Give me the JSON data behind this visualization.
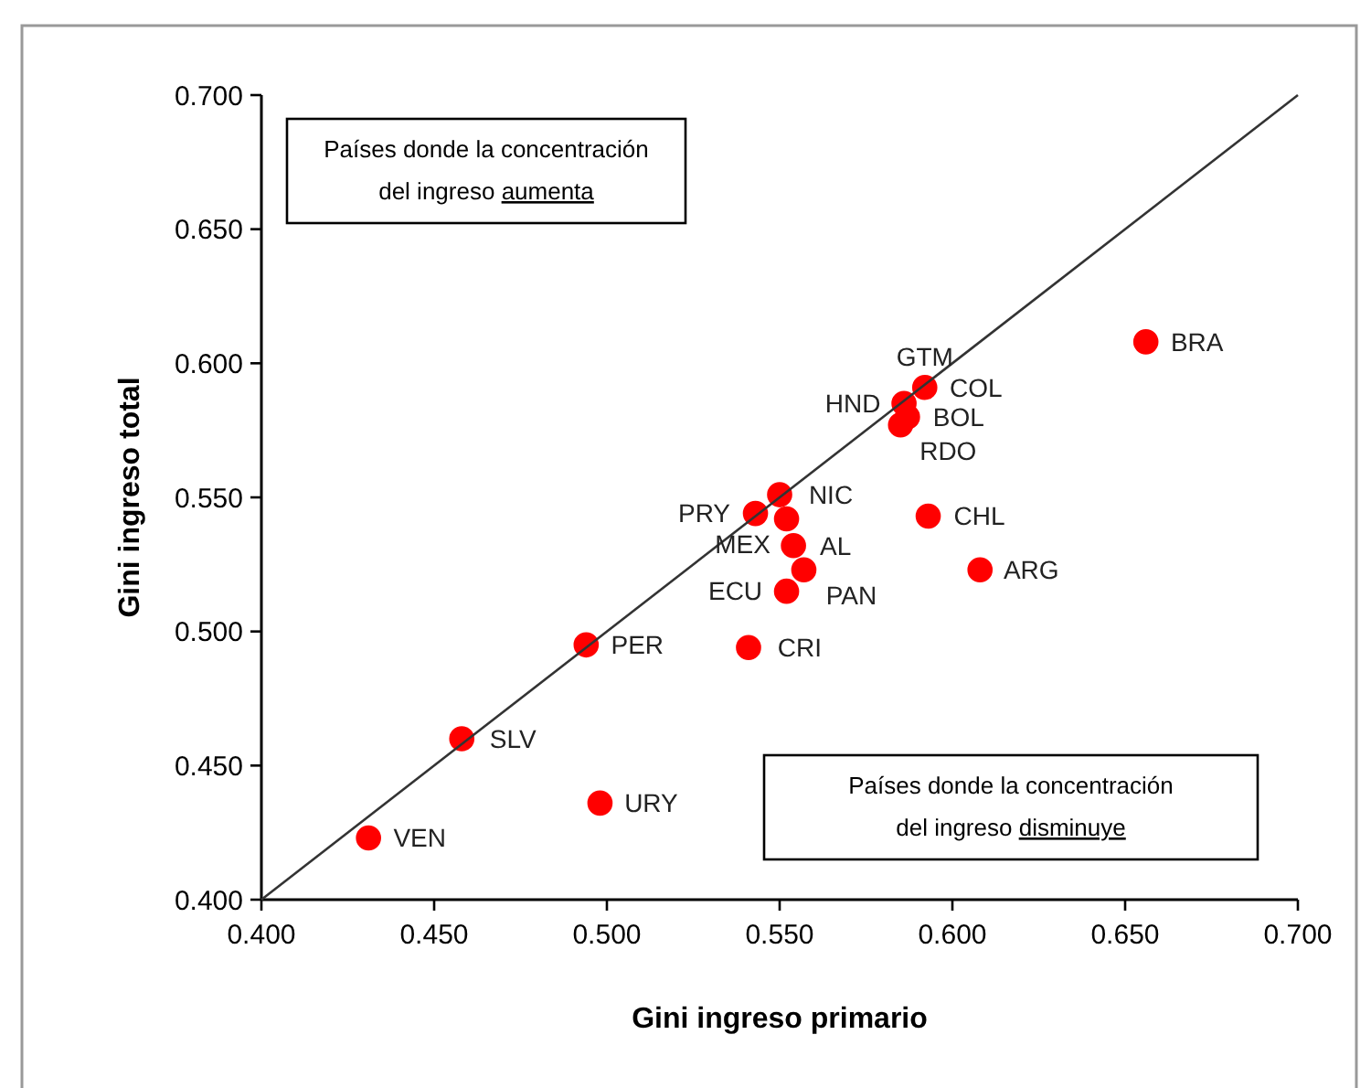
{
  "chart_data": {
    "type": "scatter",
    "xlabel": "Gini ingreso primario",
    "ylabel": "Gini ingreso total",
    "xlim": [
      0.4,
      0.7
    ],
    "ylim": [
      0.4,
      0.7
    ],
    "xticks": [
      {
        "value": 0.4,
        "label": "0.400"
      },
      {
        "value": 0.45,
        "label": "0.450"
      },
      {
        "value": 0.5,
        "label": "0.500"
      },
      {
        "value": 0.55,
        "label": "0.550"
      },
      {
        "value": 0.6,
        "label": "0.600"
      },
      {
        "value": 0.65,
        "label": "0.650"
      },
      {
        "value": 0.7,
        "label": "0.700"
      }
    ],
    "yticks": [
      {
        "value": 0.4,
        "label": "0.400"
      },
      {
        "value": 0.45,
        "label": "0.450"
      },
      {
        "value": 0.5,
        "label": "0.500"
      },
      {
        "value": 0.55,
        "label": "0.550"
      },
      {
        "value": 0.6,
        "label": "0.600"
      },
      {
        "value": 0.65,
        "label": "0.650"
      },
      {
        "value": 0.7,
        "label": "0.700"
      }
    ],
    "grid": false,
    "marker": "circle",
    "series": [
      {
        "color": "#ff0000",
        "x": [
          0.656,
          0.592,
          0.586,
          0.587,
          0.585,
          0.55,
          0.543,
          0.552,
          0.593,
          0.554,
          0.557,
          0.608,
          0.552,
          0.541,
          0.494,
          0.458,
          0.498,
          0.431
        ],
        "values": [
          0.608,
          0.591,
          0.585,
          0.58,
          0.577,
          0.551,
          0.544,
          0.542,
          0.543,
          0.532,
          0.523,
          0.523,
          0.515,
          0.494,
          0.495,
          0.46,
          0.436,
          0.423
        ]
      },
      {
        "type": "line",
        "color": "#333333",
        "x": [
          0.4,
          0.7
        ],
        "values": [
          0.4,
          0.7
        ],
        "line_style": "solid",
        "marker": "none"
      }
    ],
    "annotations": [
      "Países donde la concentración del ingreso aumenta",
      "Países donde la concentración del ingreso disminuye",
      {
        "text": "BRA",
        "x": 0.656,
        "y": 0.608
      },
      {
        "text": "COL",
        "x": 0.592,
        "y": 0.591
      },
      {
        "text": "GTM",
        "x": 0.592,
        "y": 0.591
      },
      {
        "text": "HND",
        "x": 0.586,
        "y": 0.585
      },
      {
        "text": "BOL",
        "x": 0.587,
        "y": 0.58
      },
      {
        "text": "RDO",
        "x": 0.585,
        "y": 0.577
      },
      {
        "text": "CHL",
        "x": 0.593,
        "y": 0.543
      },
      {
        "text": "ARG",
        "x": 0.608,
        "y": 0.523
      },
      {
        "text": "CRI",
        "x": 0.541,
        "y": 0.494
      },
      {
        "text": "NIC",
        "x": 0.55,
        "y": 0.551
      },
      {
        "text": "PRY",
        "x": 0.543,
        "y": 0.544
      },
      {
        "text": "MEX",
        "x": 0.552,
        "y": 0.542
      },
      {
        "text": "AL",
        "x": 0.554,
        "y": 0.532
      },
      {
        "text": "PAN",
        "x": 0.557,
        "y": 0.523
      },
      {
        "text": "ECU",
        "x": 0.552,
        "y": 0.515
      },
      {
        "text": "PER",
        "x": 0.494,
        "y": 0.495
      },
      {
        "text": "SLV",
        "x": 0.458,
        "y": 0.46
      },
      {
        "text": "URY",
        "x": 0.498,
        "y": 0.436
      },
      {
        "text": "VEN",
        "x": 0.431,
        "y": 0.423
      }
    ]
  }
}
